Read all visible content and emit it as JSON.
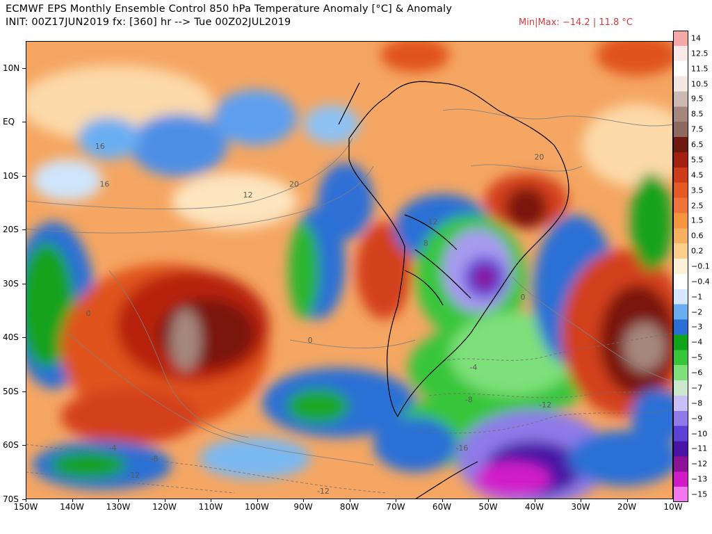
{
  "header": {
    "title": "ECMWF EPS Monthly Ensemble Control 850 hPa Temperature Anomaly [°C] & Anomaly",
    "subtitle": "INIT: 00Z17JUN2019 fx: [360] hr --> Tue 00Z02JUL2019",
    "minmax_label": "Min|Max: −14.2 | 11.8 °C",
    "minmax_color": "#d23c3c"
  },
  "map": {
    "lon_range": [
      -150,
      -10
    ],
    "lat_range": [
      -70,
      15
    ],
    "lat_labels": [
      "10N",
      "EQ",
      "10S",
      "20S",
      "30S",
      "40S",
      "50S",
      "60S",
      "70S"
    ],
    "lat_values": [
      10,
      0,
      -10,
      -20,
      -30,
      -40,
      -50,
      -60,
      -70
    ],
    "lon_labels": [
      "150W",
      "140W",
      "130W",
      "120W",
      "110W",
      "100W",
      "90W",
      "80W",
      "70W",
      "60W",
      "50W",
      "40W",
      "30W",
      "20W",
      "10W"
    ],
    "lon_values": [
      -150,
      -140,
      -130,
      -120,
      -110,
      -100,
      -90,
      -80,
      -70,
      -60,
      -50,
      -40,
      -30,
      -20,
      -10
    ],
    "contour_labels": [
      {
        "text": "16",
        "lon": -135,
        "lat": -5
      },
      {
        "text": "16",
        "lon": -134,
        "lat": -12
      },
      {
        "text": "12",
        "lon": -103,
        "lat": -14
      },
      {
        "text": "20",
        "lon": -93,
        "lat": -12
      },
      {
        "text": "20",
        "lon": -40,
        "lat": -7
      },
      {
        "text": "12",
        "lon": -63,
        "lat": -19
      },
      {
        "text": "8",
        "lon": -64,
        "lat": -23
      },
      {
        "text": "0",
        "lon": -43,
        "lat": -33
      },
      {
        "text": "0",
        "lon": -137,
        "lat": -36
      },
      {
        "text": "0",
        "lon": -89,
        "lat": -41
      },
      {
        "text": "-4",
        "lon": -54,
        "lat": -46
      },
      {
        "text": "-8",
        "lon": -55,
        "lat": -52
      },
      {
        "text": "-12",
        "lon": -39,
        "lat": -53
      },
      {
        "text": "-4",
        "lon": -132,
        "lat": -61
      },
      {
        "text": "-8",
        "lon": -123,
        "lat": -63
      },
      {
        "text": "-12",
        "lon": -128,
        "lat": -66
      },
      {
        "text": "-12",
        "lon": -87,
        "lat": -69
      },
      {
        "text": "-16",
        "lon": -57,
        "lat": -61
      }
    ]
  },
  "colorbar": {
    "labels": [
      "14",
      "12.5",
      "11.5",
      "10.5",
      "9.5",
      "8.5",
      "7.5",
      "6.5",
      "5.5",
      "4.5",
      "3.5",
      "2.5",
      "1.5",
      "0.6",
      "0.2",
      "−0.1",
      "−0.4",
      "−1",
      "−2",
      "−3",
      "−4",
      "−5",
      "−6",
      "−7",
      "−8",
      "−9",
      "−10",
      "−11",
      "−12",
      "−13",
      "−15"
    ],
    "colors": [
      "#f4a8a8",
      "#fbe8e8",
      "#ffffff",
      "#f3e7e4",
      "#cbbab4",
      "#a6877d",
      "#8c6a5f",
      "#6e1a10",
      "#a51f10",
      "#cf3a18",
      "#e55a22",
      "#f0743a",
      "#f5953c",
      "#f7b060",
      "#f9cf8a",
      "#fdf2d8",
      "#ffffff",
      "#d6e8ff",
      "#6aaef2",
      "#2a6fd6",
      "#0fa31a",
      "#37c63a",
      "#7ee07a",
      "#cbe8cc",
      "#c9c0f5",
      "#8e7ae8",
      "#5b41d5",
      "#4a15a6",
      "#8d1197",
      "#d21ac9",
      "#f577f0"
    ]
  },
  "regions": [
    {
      "type": "positive",
      "color": "#f5a05a",
      "note": "background warm"
    }
  ]
}
